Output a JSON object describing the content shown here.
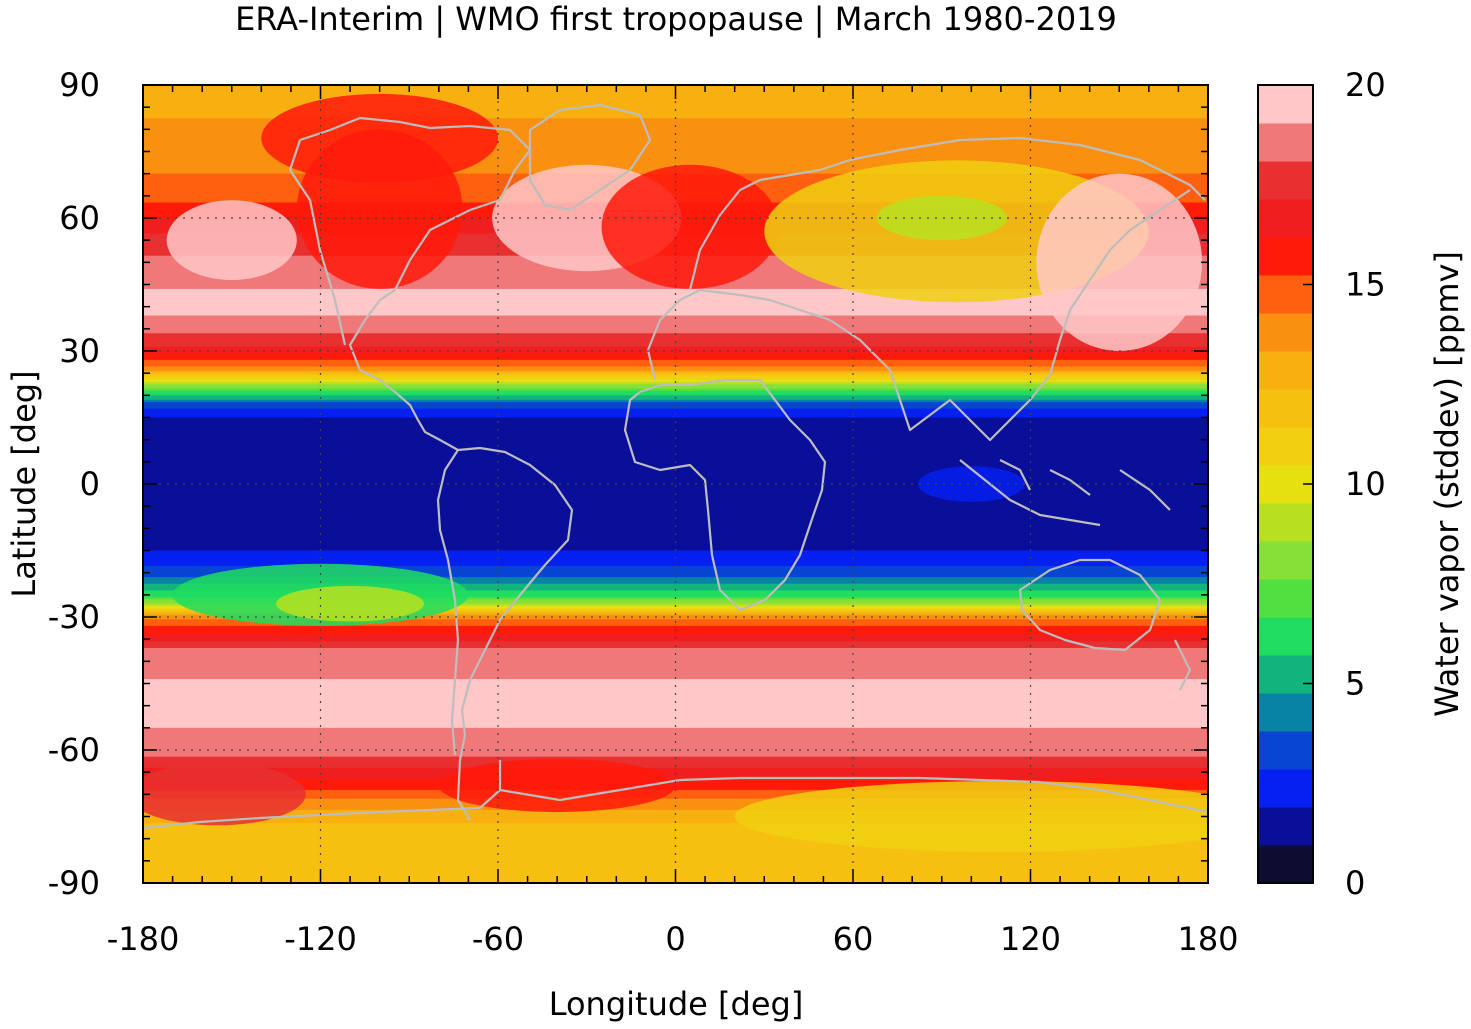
{
  "chart_data": {
    "type": "heatmap",
    "title": "ERA-Interim | WMO first tropopause | March 1980-2019",
    "xlabel": "Longitude [deg]",
    "ylabel": "Latitude [deg]",
    "xlim": [
      -180,
      180
    ],
    "ylim": [
      -90,
      90
    ],
    "x_ticks": [
      -180,
      -120,
      -60,
      0,
      60,
      120,
      180
    ],
    "y_ticks": [
      -90,
      -60,
      -30,
      0,
      30,
      60,
      90
    ],
    "x_tick_labels": [
      "-180",
      "-120",
      "-60",
      "0",
      "60",
      "120",
      "180"
    ],
    "y_tick_labels": [
      "-90",
      "-60",
      "-30",
      "0",
      "30",
      "60",
      "90"
    ],
    "grid": true,
    "colorbar": {
      "label": "Water vapor (stddev) [ppmv]",
      "range": [
        0,
        20
      ],
      "ticks": [
        0,
        5,
        10,
        15,
        20
      ],
      "tick_labels": [
        "0",
        "5",
        "10",
        "15",
        "20"
      ],
      "colors": [
        "#0d0d30",
        "#0a0f9a",
        "#0520f0",
        "#0845d2",
        "#0882a5",
        "#10b47c",
        "#20dc60",
        "#50e040",
        "#86e038",
        "#b8e020",
        "#e6e010",
        "#f0d010",
        "#f5c010",
        "#f8b010",
        "#fa9010",
        "#ff6010",
        "#ff1a0a",
        "#f01e1e",
        "#e83030",
        "#f07878",
        "#ffc8c8"
      ]
    },
    "zonal_mean_profile": {
      "lat": [
        90,
        75,
        65,
        55,
        40,
        32,
        26,
        22,
        18,
        14,
        5,
        0,
        -5,
        -15,
        -20,
        -25,
        -28,
        -30,
        -33,
        -38,
        -50,
        -60,
        -68,
        -72,
        -78,
        -85,
        -90
      ],
      "values": [
        13,
        14,
        15,
        18,
        20,
        18,
        14,
        8,
        3,
        1,
        0.5,
        0.5,
        0.5,
        1.5,
        3,
        6,
        10,
        14,
        16,
        19,
        20,
        19,
        16,
        14,
        12,
        12,
        12
      ]
    }
  }
}
